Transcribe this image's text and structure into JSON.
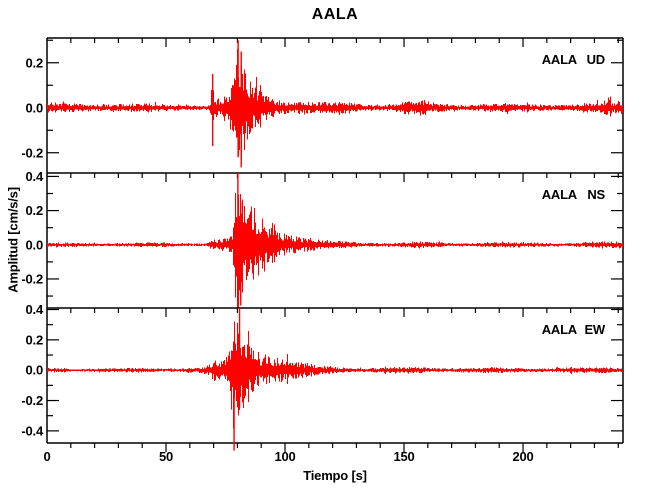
{
  "title": "AALA",
  "xlabel": "Tiempo [s]",
  "ylabel": "Amplitud [cm/s/s]",
  "chart_data": {
    "type": "line",
    "subtype": "seismogram-three-component",
    "title": "AALA",
    "xlabel": "Tiempo [s]",
    "ylabel": "Amplitud [cm/s/s]",
    "grid": false,
    "background": "#ffffff",
    "frame_color": "#000000",
    "trace_color": "#ff0000",
    "x_range": [
      0,
      242
    ],
    "x_major_tick_interval_s": 50,
    "x_minor_tick_interval_s": 10,
    "x_ticks": [
      [
        0,
        "0"
      ],
      [
        50,
        "50"
      ],
      [
        100,
        "100"
      ],
      [
        150,
        "150"
      ],
      [
        200,
        "200"
      ]
    ],
    "panel_label_position": "top-right-inside",
    "panels": [
      {
        "station": "AALA",
        "component": "UD",
        "seed": 7,
        "ylim": [
          -0.29,
          0.31
        ],
        "y_minor_tick": 0.1,
        "y_ticks": [
          [
            0.2,
            "0.2"
          ],
          [
            0.0,
            "0.0"
          ],
          [
            -0.2,
            "-0.2"
          ]
        ],
        "noise_amplitude": 0.02,
        "p_arrival_s": 70,
        "s_arrival_s": 80,
        "peak_amplitude": 0.31,
        "envelope": [
          [
            0,
            0.018
          ],
          [
            15,
            0.02
          ],
          [
            25,
            0.024
          ],
          [
            35,
            0.02
          ],
          [
            50,
            0.016
          ],
          [
            64,
            0.015
          ],
          [
            68.5,
            0.015
          ],
          [
            69.5,
            0.13
          ],
          [
            70.5,
            0.05
          ],
          [
            73,
            0.05
          ],
          [
            76,
            0.07
          ],
          [
            78.5,
            0.14
          ],
          [
            80,
            0.27
          ],
          [
            82,
            0.24
          ],
          [
            84,
            0.14
          ],
          [
            87,
            0.1
          ],
          [
            90,
            0.09
          ],
          [
            94,
            0.06
          ],
          [
            99,
            0.045
          ],
          [
            105,
            0.035
          ],
          [
            112,
            0.027
          ],
          [
            120,
            0.022
          ],
          [
            127,
            0.03
          ],
          [
            130,
            0.022
          ],
          [
            140,
            0.02
          ],
          [
            149,
            0.022
          ],
          [
            151,
            0.05
          ],
          [
            153,
            0.025
          ],
          [
            158,
            0.035
          ],
          [
            162,
            0.022
          ],
          [
            175,
            0.018
          ],
          [
            190,
            0.02
          ],
          [
            205,
            0.018
          ],
          [
            220,
            0.02
          ],
          [
            233,
            0.022
          ],
          [
            236,
            0.045
          ],
          [
            238,
            0.022
          ],
          [
            242,
            0.035
          ]
        ],
        "spikes": [
          [
            69.6,
            0.15,
            -0.17
          ],
          [
            80.3,
            0.3,
            -0.22
          ],
          [
            81.6,
            0.25,
            -0.265
          ]
        ]
      },
      {
        "station": "AALA",
        "component": "NS",
        "seed": 13,
        "ylim": [
          -0.37,
          0.42
        ],
        "y_minor_tick": 0.1,
        "y_ticks": [
          [
            0.4,
            "0.4"
          ],
          [
            0.2,
            "0.2"
          ],
          [
            0.0,
            "0.0"
          ],
          [
            -0.2,
            "-0.2"
          ]
        ],
        "noise_amplitude": 0.013,
        "p_arrival_s": 70,
        "s_arrival_s": 80,
        "peak_amplitude": 0.42,
        "envelope": [
          [
            0,
            0.012
          ],
          [
            30,
            0.013
          ],
          [
            55,
            0.012
          ],
          [
            67,
            0.012
          ],
          [
            69.5,
            0.04
          ],
          [
            72,
            0.035
          ],
          [
            75,
            0.045
          ],
          [
            78,
            0.06
          ],
          [
            79.5,
            0.35
          ],
          [
            81,
            0.4
          ],
          [
            82.5,
            0.28
          ],
          [
            84,
            0.2
          ],
          [
            86,
            0.24
          ],
          [
            88,
            0.17
          ],
          [
            90.5,
            0.21
          ],
          [
            93,
            0.13
          ],
          [
            95.5,
            0.16
          ],
          [
            98,
            0.11
          ],
          [
            101,
            0.09
          ],
          [
            104,
            0.075
          ],
          [
            107,
            0.055
          ],
          [
            110,
            0.045
          ],
          [
            114,
            0.032
          ],
          [
            118,
            0.026
          ],
          [
            124,
            0.02
          ],
          [
            132,
            0.016
          ],
          [
            145,
            0.015
          ],
          [
            158,
            0.018
          ],
          [
            170,
            0.014
          ],
          [
            185,
            0.015
          ],
          [
            200,
            0.016
          ],
          [
            215,
            0.014
          ],
          [
            230,
            0.016
          ],
          [
            240,
            0.02
          ],
          [
            242,
            0.028
          ]
        ],
        "spikes": [
          [
            80.2,
            0.42,
            -0.18
          ],
          [
            81.4,
            0.25,
            -0.355
          ]
        ]
      },
      {
        "station": "AALA",
        "component": "EW",
        "seed": 21,
        "ylim": [
          -0.48,
          0.41
        ],
        "y_minor_tick": 0.1,
        "y_ticks": [
          [
            0.4,
            "0.4"
          ],
          [
            0.2,
            "0.2"
          ],
          [
            0.0,
            "0.0"
          ],
          [
            -0.2,
            "-0.2"
          ],
          [
            -0.4,
            "-0.4"
          ]
        ],
        "noise_amplitude": 0.015,
        "p_arrival_s": 70,
        "s_arrival_s": 79,
        "peak_amplitude": 0.41,
        "envelope": [
          [
            0,
            0.014
          ],
          [
            20,
            0.015
          ],
          [
            40,
            0.014
          ],
          [
            55,
            0.016
          ],
          [
            60,
            0.025
          ],
          [
            63,
            0.018
          ],
          [
            66,
            0.025
          ],
          [
            69,
            0.05
          ],
          [
            70.5,
            0.08
          ],
          [
            72,
            0.06
          ],
          [
            74.5,
            0.07
          ],
          [
            76.5,
            0.1
          ],
          [
            78.3,
            0.4
          ],
          [
            79.5,
            0.42
          ],
          [
            81,
            0.33
          ],
          [
            82.5,
            0.24
          ],
          [
            84.5,
            0.27
          ],
          [
            87,
            0.19
          ],
          [
            89.5,
            0.14
          ],
          [
            92,
            0.16
          ],
          [
            95,
            0.12
          ],
          [
            98,
            0.1
          ],
          [
            101,
            0.08
          ],
          [
            104,
            0.065
          ],
          [
            107,
            0.05
          ],
          [
            110,
            0.042
          ],
          [
            114,
            0.033
          ],
          [
            119,
            0.027
          ],
          [
            126,
            0.022
          ],
          [
            135,
            0.018
          ],
          [
            150,
            0.02
          ],
          [
            157,
            0.026
          ],
          [
            161,
            0.02
          ],
          [
            172,
            0.017
          ],
          [
            185,
            0.018
          ],
          [
            200,
            0.019
          ],
          [
            213,
            0.016
          ],
          [
            228,
            0.02
          ],
          [
            235,
            0.024
          ],
          [
            242,
            0.018
          ]
        ],
        "spikes": [
          [
            78.6,
            0.18,
            -0.53
          ],
          [
            80.9,
            0.41,
            -0.25
          ]
        ]
      }
    ]
  }
}
